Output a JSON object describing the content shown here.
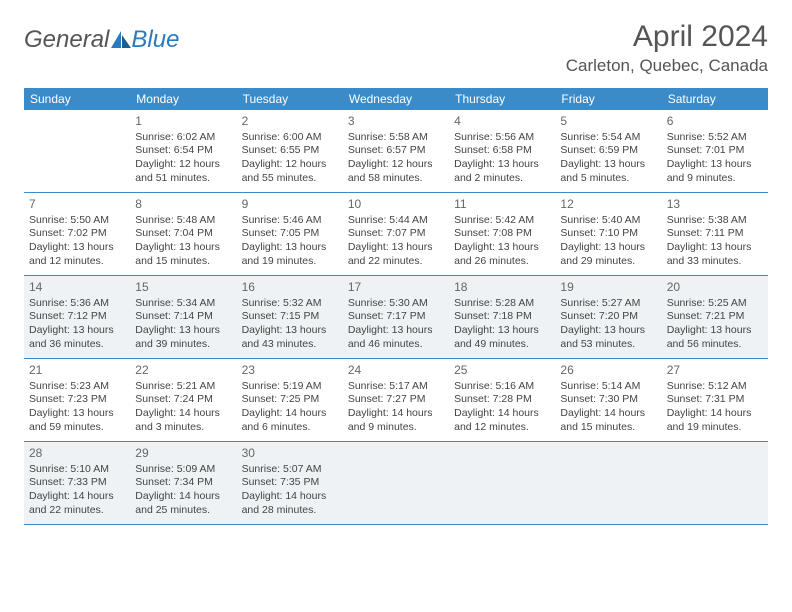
{
  "logo": {
    "general": "General",
    "blue": "Blue"
  },
  "title": "April 2024",
  "location": "Carleton, Quebec, Canada",
  "weekdays": [
    "Sunday",
    "Monday",
    "Tuesday",
    "Wednesday",
    "Thursday",
    "Friday",
    "Saturday"
  ],
  "colors": {
    "header_bg": "#3b8bc9",
    "header_text": "#ffffff",
    "shade_bg": "#eef2f5",
    "border": "#3b8bc9",
    "text": "#444444",
    "daynum": "#666666"
  },
  "days": [
    {
      "n": "",
      "sr": "",
      "ss": "",
      "dl": ""
    },
    {
      "n": "1",
      "sr": "Sunrise: 6:02 AM",
      "ss": "Sunset: 6:54 PM",
      "dl": "Daylight: 12 hours and 51 minutes."
    },
    {
      "n": "2",
      "sr": "Sunrise: 6:00 AM",
      "ss": "Sunset: 6:55 PM",
      "dl": "Daylight: 12 hours and 55 minutes."
    },
    {
      "n": "3",
      "sr": "Sunrise: 5:58 AM",
      "ss": "Sunset: 6:57 PM",
      "dl": "Daylight: 12 hours and 58 minutes."
    },
    {
      "n": "4",
      "sr": "Sunrise: 5:56 AM",
      "ss": "Sunset: 6:58 PM",
      "dl": "Daylight: 13 hours and 2 minutes."
    },
    {
      "n": "5",
      "sr": "Sunrise: 5:54 AM",
      "ss": "Sunset: 6:59 PM",
      "dl": "Daylight: 13 hours and 5 minutes."
    },
    {
      "n": "6",
      "sr": "Sunrise: 5:52 AM",
      "ss": "Sunset: 7:01 PM",
      "dl": "Daylight: 13 hours and 9 minutes."
    },
    {
      "n": "7",
      "sr": "Sunrise: 5:50 AM",
      "ss": "Sunset: 7:02 PM",
      "dl": "Daylight: 13 hours and 12 minutes."
    },
    {
      "n": "8",
      "sr": "Sunrise: 5:48 AM",
      "ss": "Sunset: 7:04 PM",
      "dl": "Daylight: 13 hours and 15 minutes."
    },
    {
      "n": "9",
      "sr": "Sunrise: 5:46 AM",
      "ss": "Sunset: 7:05 PM",
      "dl": "Daylight: 13 hours and 19 minutes."
    },
    {
      "n": "10",
      "sr": "Sunrise: 5:44 AM",
      "ss": "Sunset: 7:07 PM",
      "dl": "Daylight: 13 hours and 22 minutes."
    },
    {
      "n": "11",
      "sr": "Sunrise: 5:42 AM",
      "ss": "Sunset: 7:08 PM",
      "dl": "Daylight: 13 hours and 26 minutes."
    },
    {
      "n": "12",
      "sr": "Sunrise: 5:40 AM",
      "ss": "Sunset: 7:10 PM",
      "dl": "Daylight: 13 hours and 29 minutes."
    },
    {
      "n": "13",
      "sr": "Sunrise: 5:38 AM",
      "ss": "Sunset: 7:11 PM",
      "dl": "Daylight: 13 hours and 33 minutes."
    },
    {
      "n": "14",
      "sr": "Sunrise: 5:36 AM",
      "ss": "Sunset: 7:12 PM",
      "dl": "Daylight: 13 hours and 36 minutes."
    },
    {
      "n": "15",
      "sr": "Sunrise: 5:34 AM",
      "ss": "Sunset: 7:14 PM",
      "dl": "Daylight: 13 hours and 39 minutes."
    },
    {
      "n": "16",
      "sr": "Sunrise: 5:32 AM",
      "ss": "Sunset: 7:15 PM",
      "dl": "Daylight: 13 hours and 43 minutes."
    },
    {
      "n": "17",
      "sr": "Sunrise: 5:30 AM",
      "ss": "Sunset: 7:17 PM",
      "dl": "Daylight: 13 hours and 46 minutes."
    },
    {
      "n": "18",
      "sr": "Sunrise: 5:28 AM",
      "ss": "Sunset: 7:18 PM",
      "dl": "Daylight: 13 hours and 49 minutes."
    },
    {
      "n": "19",
      "sr": "Sunrise: 5:27 AM",
      "ss": "Sunset: 7:20 PM",
      "dl": "Daylight: 13 hours and 53 minutes."
    },
    {
      "n": "20",
      "sr": "Sunrise: 5:25 AM",
      "ss": "Sunset: 7:21 PM",
      "dl": "Daylight: 13 hours and 56 minutes."
    },
    {
      "n": "21",
      "sr": "Sunrise: 5:23 AM",
      "ss": "Sunset: 7:23 PM",
      "dl": "Daylight: 13 hours and 59 minutes."
    },
    {
      "n": "22",
      "sr": "Sunrise: 5:21 AM",
      "ss": "Sunset: 7:24 PM",
      "dl": "Daylight: 14 hours and 3 minutes."
    },
    {
      "n": "23",
      "sr": "Sunrise: 5:19 AM",
      "ss": "Sunset: 7:25 PM",
      "dl": "Daylight: 14 hours and 6 minutes."
    },
    {
      "n": "24",
      "sr": "Sunrise: 5:17 AM",
      "ss": "Sunset: 7:27 PM",
      "dl": "Daylight: 14 hours and 9 minutes."
    },
    {
      "n": "25",
      "sr": "Sunrise: 5:16 AM",
      "ss": "Sunset: 7:28 PM",
      "dl": "Daylight: 14 hours and 12 minutes."
    },
    {
      "n": "26",
      "sr": "Sunrise: 5:14 AM",
      "ss": "Sunset: 7:30 PM",
      "dl": "Daylight: 14 hours and 15 minutes."
    },
    {
      "n": "27",
      "sr": "Sunrise: 5:12 AM",
      "ss": "Sunset: 7:31 PM",
      "dl": "Daylight: 14 hours and 19 minutes."
    },
    {
      "n": "28",
      "sr": "Sunrise: 5:10 AM",
      "ss": "Sunset: 7:33 PM",
      "dl": "Daylight: 14 hours and 22 minutes."
    },
    {
      "n": "29",
      "sr": "Sunrise: 5:09 AM",
      "ss": "Sunset: 7:34 PM",
      "dl": "Daylight: 14 hours and 25 minutes."
    },
    {
      "n": "30",
      "sr": "Sunrise: 5:07 AM",
      "ss": "Sunset: 7:35 PM",
      "dl": "Daylight: 14 hours and 28 minutes."
    },
    {
      "n": "",
      "sr": "",
      "ss": "",
      "dl": ""
    },
    {
      "n": "",
      "sr": "",
      "ss": "",
      "dl": ""
    },
    {
      "n": "",
      "sr": "",
      "ss": "",
      "dl": ""
    },
    {
      "n": "",
      "sr": "",
      "ss": "",
      "dl": ""
    }
  ],
  "shaded_weeks": [
    2,
    4
  ]
}
